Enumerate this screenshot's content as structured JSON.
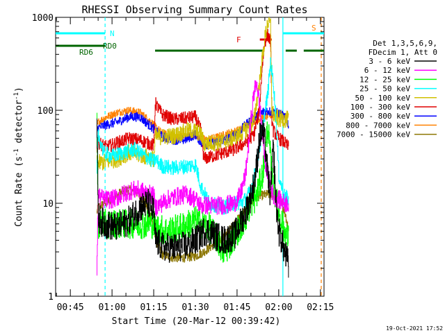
{
  "chart_data": {
    "type": "line",
    "title": "RHESSI Observing Summary Count Rates",
    "xlabel": "Start Time (20-Mar-12 00:39:42)",
    "ylabel_main": "Count Rate (s",
    "ylabel_sup1": "-1",
    "ylabel_mid": " detector",
    "ylabel_sup2": "-1",
    "ylabel_end": ")",
    "y_scale": "log",
    "xlim_min": [
      39.7,
      136.3
    ],
    "ylim": [
      1,
      1000
    ],
    "x_ticks": [
      {
        "label": "00:45",
        "min": 45
      },
      {
        "label": "01:00",
        "min": 60
      },
      {
        "label": "01:15",
        "min": 75
      },
      {
        "label": "01:30",
        "min": 90
      },
      {
        "label": "01:45",
        "min": 105
      },
      {
        "label": "02:00",
        "min": 120
      },
      {
        "label": "02:15",
        "min": 135
      }
    ],
    "y_ticks": [
      {
        "label": "1",
        "value": 1
      },
      {
        "label": "10",
        "value": 10
      },
      {
        "label": "100",
        "value": 100
      },
      {
        "label": "1000",
        "value": 1000
      }
    ],
    "legend": {
      "placement": "right",
      "header1": "Det 1,3,5,6,9,",
      "header2": "FDecim 1, Att 0",
      "entries": [
        {
          "label": "3 - 6 keV",
          "color": "#000000"
        },
        {
          "label": "6 - 12 keV",
          "color": "#ff00ff"
        },
        {
          "label": "12 - 25 keV",
          "color": "#00ff00"
        },
        {
          "label": "25 - 50 keV",
          "color": "#00ffff"
        },
        {
          "label": "50 - 100 keV",
          "color": "#d0c000"
        },
        {
          "label": "100 - 300 keV",
          "color": "#e00000"
        },
        {
          "label": "300 - 800 keV",
          "color": "#0000ff"
        },
        {
          "label": "800 - 7000 keV",
          "color": "#ff8000"
        },
        {
          "label": "7000 - 15000 keV",
          "color": "#8b7500"
        }
      ]
    },
    "annotations": {
      "N": {
        "label": "N",
        "color": "#00ffff"
      },
      "S": {
        "label": "S",
        "color": "#ff8000"
      },
      "F": {
        "label": "F",
        "color": "#e00000"
      },
      "RD0": {
        "label": "RD0",
        "color": "#006400"
      },
      "RD6": {
        "label": "RD6",
        "color": "#006400"
      }
    },
    "night_segments": [
      [
        39.7,
        57.5
      ],
      [
        121.5,
        136.3
      ]
    ],
    "saa_segments": [
      [
        39.7,
        57.5
      ],
      [
        75.5,
        114.5
      ],
      [
        122.5,
        126.5
      ],
      [
        129.0,
        136.3
      ]
    ],
    "saa_color": "#006400",
    "flare_segment": [
      113.2,
      117.5
    ],
    "vlines": [
      {
        "min": 57.5,
        "color": "#00ffff",
        "dash": true
      },
      {
        "min": 121.5,
        "color": "#00ffff",
        "dash": false
      },
      {
        "min": 135.3,
        "color": "#ff8000",
        "dash": true
      }
    ],
    "data_range_min": [
      54.5,
      123.5
    ],
    "series": [
      {
        "name": "3 - 6 keV",
        "color": "#000000",
        "noise": 0.16,
        "knots": [
          [
            54.5,
            90
          ],
          [
            55.0,
            7
          ],
          [
            57,
            6
          ],
          [
            62,
            5.5
          ],
          [
            66,
            6.5
          ],
          [
            70,
            9
          ],
          [
            73,
            10
          ],
          [
            75,
            8
          ],
          [
            75.5,
            4
          ],
          [
            78,
            3.4
          ],
          [
            82,
            3.3
          ],
          [
            87,
            3.5
          ],
          [
            90,
            4
          ],
          [
            93,
            5
          ],
          [
            95,
            5
          ],
          [
            97,
            4.5
          ],
          [
            100,
            4
          ],
          [
            104,
            4.5
          ],
          [
            106,
            6
          ],
          [
            108,
            8
          ],
          [
            110,
            12
          ],
          [
            111,
            16
          ],
          [
            112,
            25
          ],
          [
            113,
            50
          ],
          [
            114,
            60
          ],
          [
            115,
            45
          ],
          [
            116,
            20
          ],
          [
            117,
            12
          ],
          [
            118,
            40
          ],
          [
            119,
            10
          ],
          [
            120,
            5
          ],
          [
            121,
            4
          ],
          [
            122,
            3
          ],
          [
            123,
            2.5
          ],
          [
            123.5,
            2
          ]
        ]
      },
      {
        "name": "6 - 12 keV",
        "color": "#ff00ff",
        "noise": 0.1,
        "knots": [
          [
            54.5,
            2
          ],
          [
            55.0,
            12
          ],
          [
            57,
            11
          ],
          [
            60,
            11
          ],
          [
            63,
            12
          ],
          [
            66,
            13.5
          ],
          [
            69,
            14
          ],
          [
            72,
            13
          ],
          [
            75,
            12
          ],
          [
            75.5,
            9
          ],
          [
            80,
            11
          ],
          [
            84,
            12
          ],
          [
            87,
            12.5
          ],
          [
            90,
            11
          ],
          [
            92,
            9.5
          ],
          [
            95,
            9.5
          ],
          [
            100,
            9.5
          ],
          [
            104,
            10
          ],
          [
            106,
            12
          ],
          [
            108,
            20
          ],
          [
            109,
            40
          ],
          [
            110,
            80
          ],
          [
            111,
            150
          ],
          [
            112,
            200
          ],
          [
            113,
            120
          ],
          [
            114,
            60
          ],
          [
            115,
            30
          ],
          [
            116,
            20
          ],
          [
            117,
            15
          ],
          [
            118,
            12
          ],
          [
            120,
            11
          ],
          [
            122,
            10
          ],
          [
            123.5,
            10
          ]
        ]
      },
      {
        "name": "12 - 25 keV",
        "color": "#00ff00",
        "noise": 0.16,
        "knots": [
          [
            54.5,
            90
          ],
          [
            55.0,
            6
          ],
          [
            60,
            6
          ],
          [
            65,
            6
          ],
          [
            70,
            6
          ],
          [
            75,
            6
          ],
          [
            75.5,
            5.5
          ],
          [
            80,
            5
          ],
          [
            85,
            5.5
          ],
          [
            90,
            6.5
          ],
          [
            95,
            5.5
          ],
          [
            98,
            4
          ],
          [
            100,
            3
          ],
          [
            102,
            3.5
          ],
          [
            105,
            5
          ],
          [
            108,
            7
          ],
          [
            110,
            10
          ],
          [
            112,
            12
          ],
          [
            114,
            20
          ],
          [
            115,
            30
          ],
          [
            116,
            70
          ],
          [
            117,
            30
          ],
          [
            118,
            15
          ],
          [
            120,
            8
          ],
          [
            122,
            5
          ],
          [
            123.5,
            4
          ]
        ]
      },
      {
        "name": "25 - 50 keV",
        "color": "#00ffff",
        "noise": 0.08,
        "knots": [
          [
            54.5,
            20
          ],
          [
            55.0,
            55
          ],
          [
            57,
            35
          ],
          [
            60,
            32
          ],
          [
            64,
            35
          ],
          [
            68,
            38
          ],
          [
            72,
            32
          ],
          [
            75,
            28
          ],
          [
            75.5,
            30
          ],
          [
            78,
            25
          ],
          [
            82,
            24
          ],
          [
            87,
            25
          ],
          [
            90,
            26
          ],
          [
            92,
            15
          ],
          [
            95,
            10
          ],
          [
            100,
            9
          ],
          [
            104,
            10
          ],
          [
            106,
            10
          ],
          [
            108,
            11
          ],
          [
            110,
            14
          ],
          [
            112,
            25
          ],
          [
            114,
            60
          ],
          [
            116,
            150
          ],
          [
            117,
            330
          ],
          [
            118,
            200
          ],
          [
            119,
            80
          ],
          [
            120,
            20
          ],
          [
            121,
            15
          ],
          [
            122,
            12
          ],
          [
            123.5,
            11
          ]
        ]
      },
      {
        "name": "50 - 100 keV",
        "color": "#d0c000",
        "noise": 0.09,
        "knots": [
          [
            54.5,
            30
          ],
          [
            55.0,
            27
          ],
          [
            58,
            28
          ],
          [
            62,
            30
          ],
          [
            66,
            35
          ],
          [
            70,
            33
          ],
          [
            75,
            30
          ],
          [
            75.5,
            52
          ],
          [
            78,
            52
          ],
          [
            82,
            53
          ],
          [
            87,
            60
          ],
          [
            90,
            60
          ],
          [
            92,
            55
          ],
          [
            93,
            44
          ],
          [
            98,
            45
          ],
          [
            102,
            48
          ],
          [
            106,
            55
          ],
          [
            109,
            65
          ],
          [
            111,
            75
          ],
          [
            113,
            200
          ],
          [
            115,
            600
          ],
          [
            116,
            900
          ],
          [
            117,
            850
          ],
          [
            117.5,
            100
          ],
          [
            118,
            90
          ],
          [
            120,
            80
          ],
          [
            122,
            80
          ],
          [
            123.5,
            80
          ]
        ]
      },
      {
        "name": "100 - 300 keV",
        "color": "#e00000",
        "noise": 0.07,
        "knots": [
          [
            54.5,
            40
          ],
          [
            55.0,
            45
          ],
          [
            58,
            40
          ],
          [
            62,
            45
          ],
          [
            66,
            50
          ],
          [
            70,
            48
          ],
          [
            75,
            42
          ],
          [
            75.5,
            120
          ],
          [
            78,
            90
          ],
          [
            82,
            80
          ],
          [
            86,
            82
          ],
          [
            90,
            85
          ],
          [
            92,
            60
          ],
          [
            93,
            30
          ],
          [
            96,
            32
          ],
          [
            100,
            35
          ],
          [
            104,
            38
          ],
          [
            108,
            45
          ],
          [
            111,
            55
          ],
          [
            113,
            100
          ],
          [
            114,
            300
          ],
          [
            115,
            550
          ],
          [
            116,
            650
          ],
          [
            117,
            550
          ],
          [
            117.5,
            80
          ],
          [
            118,
            60
          ],
          [
            120,
            50
          ],
          [
            122,
            45
          ],
          [
            123.5,
            40
          ]
        ]
      },
      {
        "name": "300 - 800 keV",
        "color": "#0000ff",
        "noise": 0.05,
        "knots": [
          [
            54.5,
            60
          ],
          [
            55.0,
            65
          ],
          [
            58,
            70
          ],
          [
            62,
            75
          ],
          [
            66,
            85
          ],
          [
            70,
            85
          ],
          [
            72,
            75
          ],
          [
            75,
            63
          ],
          [
            75.5,
            60
          ],
          [
            78,
            52
          ],
          [
            82,
            48
          ],
          [
            86,
            48
          ],
          [
            90,
            55
          ],
          [
            92,
            45
          ],
          [
            94,
            43
          ],
          [
            98,
            45
          ],
          [
            102,
            50
          ],
          [
            106,
            60
          ],
          [
            110,
            80
          ],
          [
            113,
            90
          ],
          [
            115,
            100
          ],
          [
            118,
            95
          ],
          [
            120,
            93
          ],
          [
            122,
            85
          ],
          [
            123.5,
            70
          ]
        ]
      },
      {
        "name": "800 - 7000 keV",
        "color": "#ff8000",
        "noise": 0.04,
        "knots": [
          [
            54.5,
            65
          ],
          [
            55.0,
            75
          ],
          [
            58,
            85
          ],
          [
            62,
            95
          ],
          [
            66,
            100
          ],
          [
            70,
            95
          ],
          [
            73,
            80
          ],
          [
            75,
            70
          ],
          [
            75.5,
            67
          ],
          [
            78,
            57
          ],
          [
            82,
            52
          ],
          [
            86,
            52
          ],
          [
            90,
            55
          ],
          [
            92,
            50
          ],
          [
            94,
            48
          ],
          [
            98,
            52
          ],
          [
            102,
            57
          ],
          [
            106,
            62
          ],
          [
            110,
            75
          ],
          [
            113,
            80
          ],
          [
            115,
            85
          ],
          [
            118,
            90
          ],
          [
            120,
            90
          ],
          [
            122,
            85
          ],
          [
            123.5,
            85
          ]
        ]
      },
      {
        "name": "7000 - 15000 keV",
        "color": "#8b7500",
        "noise": 0.05,
        "knots": [
          [
            54.5,
            8
          ],
          [
            55.0,
            9
          ],
          [
            57,
            10
          ],
          [
            60,
            11
          ],
          [
            63,
            13
          ],
          [
            66,
            14
          ],
          [
            69,
            13
          ],
          [
            72,
            10
          ],
          [
            74,
            7
          ],
          [
            75,
            5.5
          ],
          [
            75.5,
            4.2
          ],
          [
            78,
            2.8
          ],
          [
            82,
            2.6
          ],
          [
            86,
            2.6
          ],
          [
            90,
            2.7
          ],
          [
            93,
            3
          ],
          [
            96,
            3.5
          ],
          [
            100,
            4.2
          ],
          [
            104,
            6
          ],
          [
            108,
            8.5
          ],
          [
            111,
            11
          ],
          [
            113,
            12
          ],
          [
            116,
            12.5
          ],
          [
            118,
            12
          ],
          [
            120,
            11
          ],
          [
            121,
            10
          ],
          [
            122,
            8
          ],
          [
            123.5,
            5
          ]
        ]
      }
    ],
    "timestamp": "19-Oct-2021 17:52"
  }
}
